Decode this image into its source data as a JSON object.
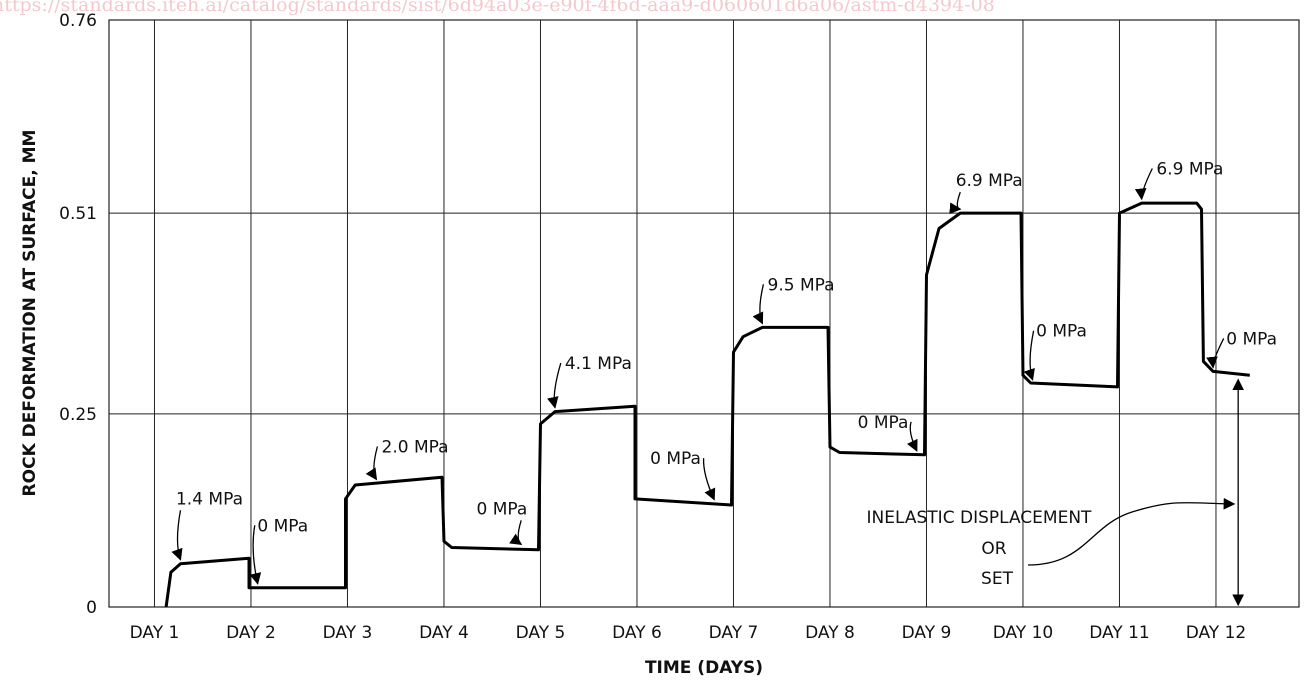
{
  "watermark": "https://standards.iteh.ai/catalog/standards/sist/6d94a03e-e90f-4f6d-aaa9-d060601d6a06/astm-d4394-08",
  "chart_data": {
    "type": "line",
    "title": "",
    "xlabel": "TIME (DAYS)",
    "ylabel": "ROCK DEFORMATION AT SURFACE, MM",
    "categories": [
      "DAY 1",
      "DAY 2",
      "DAY 3",
      "DAY 4",
      "DAY 5",
      "DAY 6",
      "DAY 7",
      "DAY 8",
      "DAY 9",
      "DAY 10",
      "DAY 11",
      "DAY 12"
    ],
    "xlim": [
      0,
      12.35
    ],
    "ylim": [
      0,
      0.76
    ],
    "yticks": [
      {
        "value": 0,
        "label": "0"
      },
      {
        "value": 0.25,
        "label": "0.25"
      },
      {
        "value": 0.51,
        "label": "0.51"
      },
      {
        "value": 0.76,
        "label": "0.76"
      }
    ],
    "grid": true,
    "series": [
      {
        "points": [
          [
            0.27,
            0
          ],
          [
            0.32,
            0.045
          ],
          [
            0.42,
            0.056
          ],
          [
            1.13,
            0.063
          ],
          [
            1.13,
            0.025
          ],
          [
            2.13,
            0.025
          ],
          [
            2.13,
            0.14
          ],
          [
            2.23,
            0.158
          ],
          [
            3.13,
            0.168
          ],
          [
            3.15,
            0.085
          ],
          [
            3.23,
            0.077
          ],
          [
            4.13,
            0.074
          ],
          [
            4.15,
            0.237
          ],
          [
            4.3,
            0.253
          ],
          [
            5.13,
            0.26
          ],
          [
            5.13,
            0.14
          ],
          [
            6.13,
            0.132
          ],
          [
            6.15,
            0.33
          ],
          [
            6.25,
            0.35
          ],
          [
            6.45,
            0.362
          ],
          [
            7.13,
            0.362
          ],
          [
            7.15,
            0.207
          ],
          [
            7.25,
            0.2
          ],
          [
            8.13,
            0.197
          ],
          [
            8.15,
            0.43
          ],
          [
            8.28,
            0.49
          ],
          [
            8.5,
            0.51
          ],
          [
            9.13,
            0.51
          ],
          [
            9.15,
            0.3
          ],
          [
            9.23,
            0.29
          ],
          [
            10.13,
            0.285
          ],
          [
            10.15,
            0.51
          ],
          [
            10.38,
            0.523
          ],
          [
            10.95,
            0.523
          ],
          [
            11.0,
            0.515
          ],
          [
            11.02,
            0.318
          ],
          [
            11.12,
            0.305
          ],
          [
            11.5,
            0.3
          ]
        ]
      }
    ],
    "annotations": [
      {
        "text": "1.4 MPa",
        "x": 0.72,
        "y": 0.133,
        "tx": 0.42,
        "ty": 0.056
      },
      {
        "text": "0 MPa",
        "x": 1.48,
        "y": 0.098,
        "tx": 1.22,
        "ty": 0.025
      },
      {
        "text": "2.0 MPa",
        "x": 2.85,
        "y": 0.2,
        "tx": 2.45,
        "ty": 0.16
      },
      {
        "text": "0 MPa",
        "x": 3.75,
        "y": 0.12,
        "tx": 3.95,
        "ty": 0.076
      },
      {
        "text": "4.1 MPa",
        "x": 4.75,
        "y": 0.308,
        "tx": 4.3,
        "ty": 0.253
      },
      {
        "text": "0 MPa",
        "x": 5.55,
        "y": 0.185,
        "tx": 5.95,
        "ty": 0.134
      },
      {
        "text": "9.5 MPa",
        "x": 6.85,
        "y": 0.41,
        "tx": 6.45,
        "ty": 0.362
      },
      {
        "text": "0 MPa",
        "x": 7.7,
        "y": 0.232,
        "tx": 8.05,
        "ty": 0.197
      },
      {
        "text": "6.9 MPa",
        "x": 8.8,
        "y": 0.545,
        "tx": 8.5,
        "ty": 0.51
      },
      {
        "text": "0 MPa",
        "x": 9.55,
        "y": 0.35,
        "tx": 9.25,
        "ty": 0.289
      },
      {
        "text": "6.9 MPa",
        "x": 10.88,
        "y": 0.56,
        "tx": 10.38,
        "ty": 0.523
      },
      {
        "text": "0 MPa",
        "x": 11.52,
        "y": 0.34,
        "tx": 11.12,
        "ty": 0.305
      }
    ],
    "callout": {
      "lines": [
        "INELASTIC DISPLACEMENT",
        "OR",
        "SET"
      ],
      "arrow_x": 11.38,
      "arrow_from": 0,
      "arrow_to": 0.297
    }
  }
}
